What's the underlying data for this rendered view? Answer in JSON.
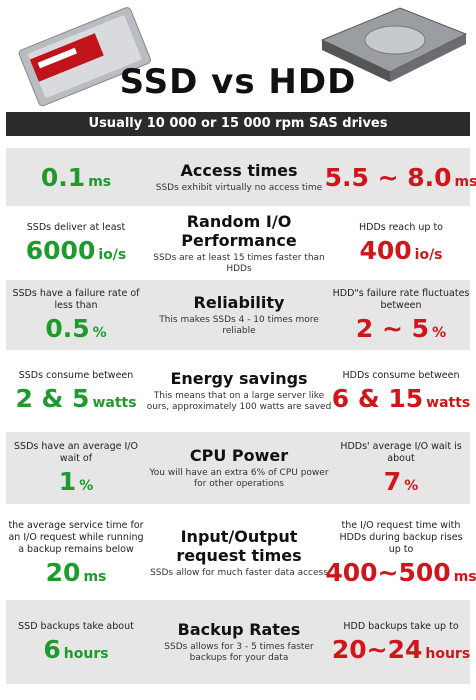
{
  "header": {
    "title": "SSD vs HDD",
    "subtitle": "Usually 10 000 or 15 000 rpm SAS drives"
  },
  "rows": [
    {
      "title": "Access times",
      "description": "SSDs exhibit virtually no access time",
      "ssd": {
        "value": "0.1",
        "unit": "ms"
      },
      "hdd": {
        "value": "5.5 ~ 8.0",
        "unit": "ms"
      }
    },
    {
      "title": "Random I/O Performance",
      "description": "SSDs are at least 15 times faster than HDDs",
      "ssd": {
        "note": "SSDs deliver at least",
        "value": "6000",
        "unit": "io/s"
      },
      "hdd": {
        "note": "HDDs reach up to",
        "value": "400",
        "unit": "io/s"
      }
    },
    {
      "title": "Reliability",
      "description": "This makes SSDs 4 - 10 times more reliable",
      "ssd": {
        "note": "SSDs have a failure rate of less than",
        "value": "0.5",
        "unit": "%"
      },
      "hdd": {
        "note": "HDD\"s failure rate fluctuates between",
        "value": "2 ~ 5",
        "unit": "%"
      }
    },
    {
      "title": "Energy savings",
      "description": "This means that on a large server like ours, approximately 100 watts are saved",
      "ssd": {
        "note": "SSDs consume between",
        "value": "2 & 5",
        "unit": "watts"
      },
      "hdd": {
        "note": "HDDs consume between",
        "value": "6 & 15",
        "unit": "watts"
      }
    },
    {
      "title": "CPU Power",
      "description": "You will have an extra 6% of CPU power for other operations",
      "ssd": {
        "note": "SSDs have an average I/O wait of",
        "value": "1",
        "unit": "%"
      },
      "hdd": {
        "note": "HDDs' average I/O wait is about",
        "value": "7",
        "unit": "%"
      }
    },
    {
      "title": "Input/Output request times",
      "description": "SSDs allow for much faster data access",
      "ssd": {
        "note": "the average service time for an I/O request while running a backup remains below",
        "value": "20",
        "unit": "ms"
      },
      "hdd": {
        "note": "the I/O request time with HDDs during backup rises up to",
        "value": "400~500",
        "unit": "ms"
      }
    },
    {
      "title": "Backup Rates",
      "description": "SSDs allows for 3 - 5 times faster backups for your data",
      "ssd": {
        "note": "SSD backups take about",
        "value": "6",
        "unit": "hours"
      },
      "hdd": {
        "note": "HDD backups take up to",
        "value": "20~24",
        "unit": "hours"
      }
    }
  ]
}
